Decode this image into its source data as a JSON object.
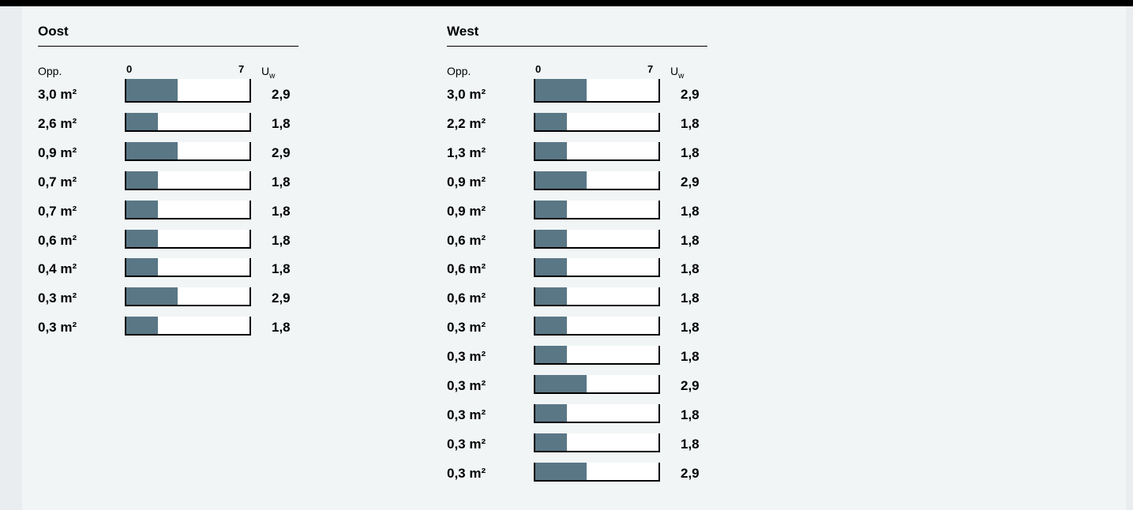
{
  "chart_data": [
    {
      "type": "bar",
      "orientation": "horizontal",
      "title": "Oost",
      "col_area_label": "Opp.",
      "axis_min_label": "0",
      "axis_max_label": "7",
      "col_u_label": "U",
      "col_u_sub": "w",
      "xlim": [
        0,
        7
      ],
      "rows": [
        {
          "area": "3,0 m²",
          "u": "2,9",
          "value": 2.9
        },
        {
          "area": "2,6 m²",
          "u": "1,8",
          "value": 1.8
        },
        {
          "area": "0,9 m²",
          "u": "2,9",
          "value": 2.9
        },
        {
          "area": "0,7 m²",
          "u": "1,8",
          "value": 1.8
        },
        {
          "area": "0,7 m²",
          "u": "1,8",
          "value": 1.8
        },
        {
          "area": "0,6 m²",
          "u": "1,8",
          "value": 1.8
        },
        {
          "area": "0,4 m²",
          "u": "1,8",
          "value": 1.8
        },
        {
          "area": "0,3 m²",
          "u": "2,9",
          "value": 2.9
        },
        {
          "area": "0,3 m²",
          "u": "1,8",
          "value": 1.8
        }
      ]
    },
    {
      "type": "bar",
      "orientation": "horizontal",
      "title": "West",
      "col_area_label": "Opp.",
      "axis_min_label": "0",
      "axis_max_label": "7",
      "col_u_label": "U",
      "col_u_sub": "w",
      "xlim": [
        0,
        7
      ],
      "rows": [
        {
          "area": "3,0 m²",
          "u": "2,9",
          "value": 2.9
        },
        {
          "area": "2,2 m²",
          "u": "1,8",
          "value": 1.8
        },
        {
          "area": "1,3 m²",
          "u": "1,8",
          "value": 1.8
        },
        {
          "area": "0,9 m²",
          "u": "2,9",
          "value": 2.9
        },
        {
          "area": "0,9 m²",
          "u": "1,8",
          "value": 1.8
        },
        {
          "area": "0,6 m²",
          "u": "1,8",
          "value": 1.8
        },
        {
          "area": "0,6 m²",
          "u": "1,8",
          "value": 1.8
        },
        {
          "area": "0,6 m²",
          "u": "1,8",
          "value": 1.8
        },
        {
          "area": "0,3 m²",
          "u": "1,8",
          "value": 1.8
        },
        {
          "area": "0,3 m²",
          "u": "1,8",
          "value": 1.8
        },
        {
          "area": "0,3 m²",
          "u": "2,9",
          "value": 2.9
        },
        {
          "area": "0,3 m²",
          "u": "1,8",
          "value": 1.8
        },
        {
          "area": "0,3 m²",
          "u": "1,8",
          "value": 1.8
        },
        {
          "area": "0,3 m²",
          "u": "2,9",
          "value": 2.9
        }
      ]
    }
  ],
  "colors": {
    "bar": "#5a7786",
    "track": "#ffffff",
    "panel": "#f1f5f6"
  }
}
